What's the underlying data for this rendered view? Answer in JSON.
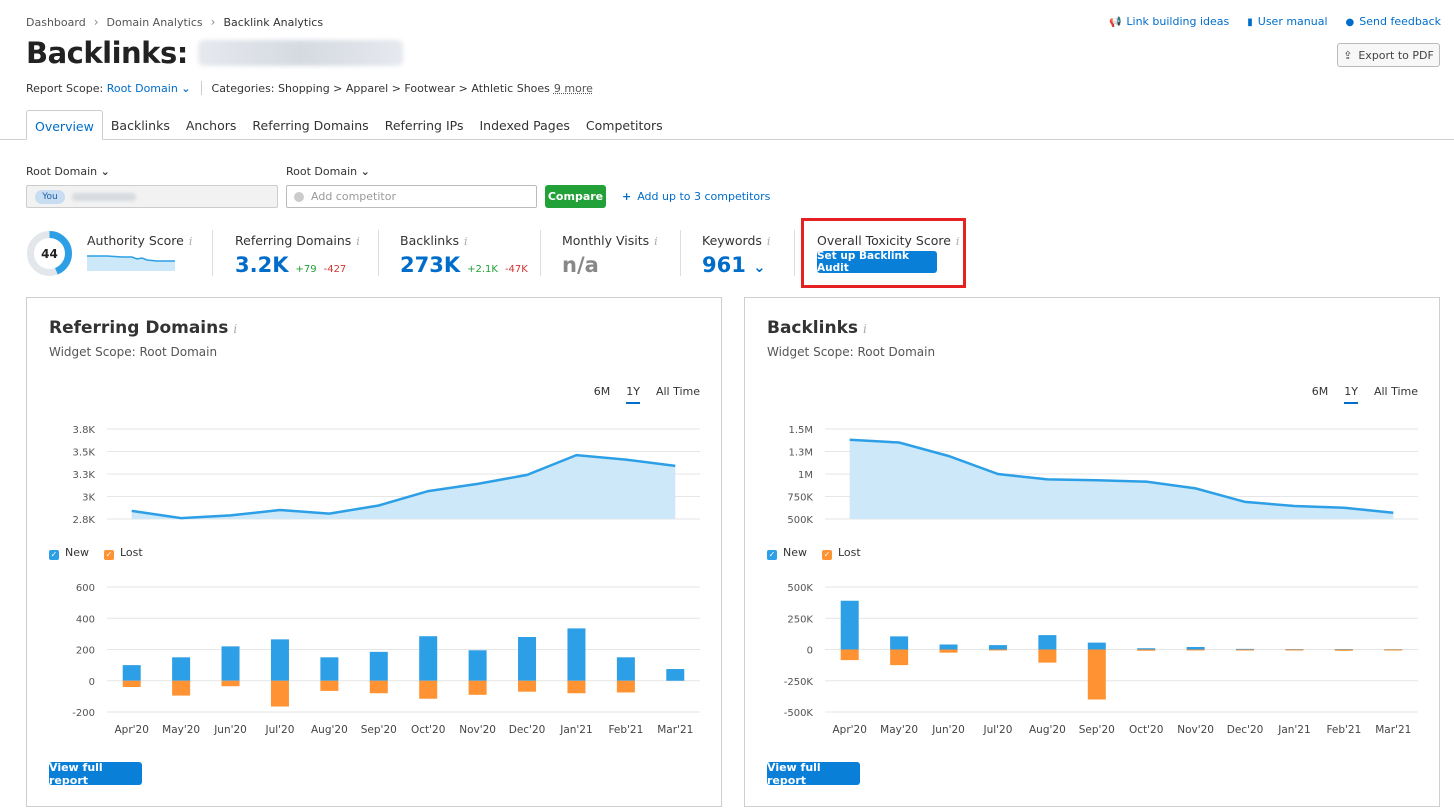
{
  "breadcrumb": [
    "Dashboard",
    "Domain Analytics",
    "Backlink Analytics"
  ],
  "top_links": {
    "link_building": "Link building ideas",
    "manual": "User manual",
    "feedback": "Send feedback"
  },
  "title": "Backlinks:",
  "export_label": "Export to PDF",
  "report_scope": {
    "label": "Report Scope:",
    "value": "Root Domain",
    "categories_label": "Categories:",
    "categories": "Shopping > Apparel > Footwear > Athletic Shoes",
    "more": "9 more"
  },
  "tabs": [
    "Overview",
    "Backlinks",
    "Anchors",
    "Referring Domains",
    "Referring IPs",
    "Indexed Pages",
    "Competitors"
  ],
  "compare": {
    "dropdown_1": "Root Domain",
    "dropdown_2": "Root Domain",
    "you_badge": "You",
    "placeholder": "Add competitor",
    "button": "Compare",
    "add_link": "Add up to 3 competitors"
  },
  "metrics": {
    "authority": {
      "label": "Authority Score",
      "value": "44",
      "fraction": 0.44
    },
    "referring_domains": {
      "label": "Referring Domains",
      "value": "3.2K",
      "pos": "+79",
      "neg": "-427"
    },
    "backlinks": {
      "label": "Backlinks",
      "value": "273K",
      "pos": "+2.1K",
      "neg": "-47K"
    },
    "monthly_visits": {
      "label": "Monthly Visits",
      "value": "n/a"
    },
    "keywords": {
      "label": "Keywords",
      "value": "961"
    },
    "toxicity": {
      "label": "Overall Toxicity Score",
      "button": "Set up Backlink Audit"
    }
  },
  "colors": {
    "accent": "#006dca",
    "new": "#2d9fe6",
    "lost": "#ff9232",
    "area": "#cde8f8",
    "compare": "#21a138",
    "highlight": "#e52222"
  },
  "widgets": {
    "referring": {
      "title": "Referring Domains",
      "scope": "Widget Scope: Root Domain",
      "button": "View full report"
    },
    "backlinks": {
      "title": "Backlinks",
      "scope": "Widget Scope: Root Domain",
      "button": "View full report"
    },
    "periods": [
      "6M",
      "1Y",
      "All Time"
    ],
    "selected_period": "1Y",
    "legend": {
      "new": "New",
      "lost": "Lost"
    }
  },
  "chart_data": [
    {
      "id": "rd_line",
      "type": "area",
      "title": "Referring Domains",
      "x": [
        "Apr'20",
        "May'20",
        "Jun'20",
        "Jul'20",
        "Aug'20",
        "Sep'20",
        "Oct'20",
        "Nov'20",
        "Dec'20",
        "Jan'21",
        "Feb'21",
        "Mar'21"
      ],
      "values": [
        2890,
        2810,
        2840,
        2900,
        2860,
        2950,
        3110,
        3190,
        3290,
        3510,
        3460,
        3390
      ],
      "yticks": [
        "2.8K",
        "3K",
        "3.3K",
        "3.5K",
        "3.8K"
      ],
      "ylim": [
        2800,
        3800
      ]
    },
    {
      "id": "rd_bars",
      "type": "bar",
      "categories": [
        "Apr'20",
        "May'20",
        "Jun'20",
        "Jul'20",
        "Aug'20",
        "Sep'20",
        "Oct'20",
        "Nov'20",
        "Dec'20",
        "Jan'21",
        "Feb'21",
        "Mar'21"
      ],
      "series": [
        {
          "name": "New",
          "values": [
            100,
            150,
            220,
            265,
            150,
            185,
            285,
            195,
            280,
            335,
            150,
            75
          ]
        },
        {
          "name": "Lost",
          "values": [
            -40,
            -95,
            -35,
            -165,
            -65,
            -80,
            -115,
            -90,
            -70,
            -80,
            -75,
            0
          ]
        }
      ],
      "yticks": [
        "-200",
        "0",
        "200",
        "400",
        "600"
      ],
      "ylim": [
        -200,
        600
      ]
    },
    {
      "id": "bl_line",
      "type": "area",
      "title": "Backlinks",
      "x": [
        "Apr'20",
        "May'20",
        "Jun'20",
        "Jul'20",
        "Aug'20",
        "Sep'20",
        "Oct'20",
        "Nov'20",
        "Dec'20",
        "Jan'21",
        "Feb'21",
        "Mar'21"
      ],
      "values": [
        1380000,
        1350000,
        1200000,
        1000000,
        940000,
        930000,
        915000,
        840000,
        690000,
        645000,
        625000,
        570000
      ],
      "yticks": [
        "500K",
        "750K",
        "1M",
        "1.3M",
        "1.5M"
      ],
      "ylim": [
        500000,
        1500000
      ]
    },
    {
      "id": "bl_bars",
      "type": "bar",
      "categories": [
        "Apr'20",
        "May'20",
        "Jun'20",
        "Jul'20",
        "Aug'20",
        "Sep'20",
        "Oct'20",
        "Nov'20",
        "Dec'20",
        "Jan'21",
        "Feb'21",
        "Mar'21"
      ],
      "series": [
        {
          "name": "New",
          "values": [
            390000,
            105000,
            40000,
            35000,
            115000,
            55000,
            10000,
            20000,
            5000,
            3000,
            3000,
            2000
          ]
        },
        {
          "name": "Lost",
          "values": [
            -85000,
            -125000,
            -25000,
            -5000,
            -105000,
            -400000,
            -10000,
            -5000,
            -8000,
            -8000,
            -10000,
            -2000
          ]
        }
      ],
      "yticks": [
        "-500K",
        "-250K",
        "0",
        "250K",
        "500K"
      ],
      "ylim": [
        -500000,
        500000
      ]
    }
  ]
}
